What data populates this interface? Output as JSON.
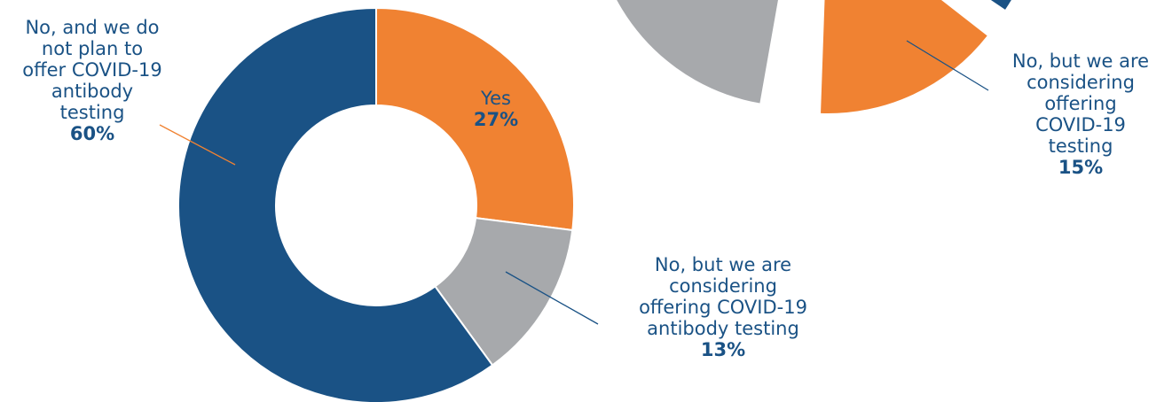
{
  "chart_data": [
    {
      "type": "pie",
      "categories": [
        "Yes",
        "No, but we are considering offering COVID-19 antibody testing",
        "No, and we do not plan to offer COVID-19 antibody testing"
      ],
      "values": [
        27,
        13,
        60
      ],
      "series": [
        {
          "values": [
            27,
            13,
            60
          ]
        }
      ],
      "colors": [
        "#f08232",
        "#a7a9ac",
        "#1a5285"
      ],
      "labels": [
        {
          "lines": [
            "Yes"
          ],
          "pct": "27%"
        },
        {
          "lines": [
            "No, but we are",
            "considering",
            "offering COVID-19",
            "antibody testing"
          ],
          "pct": "13%"
        },
        {
          "lines": [
            "No, and we do",
            "not plan to",
            "offer COVID-19",
            "antibody",
            "testing"
          ],
          "pct": "60%"
        }
      ],
      "title": "",
      "legend": "none"
    },
    {
      "type": "pie",
      "categories": [
        "No, but we are considering offering COVID-19 testing"
      ],
      "values": [
        15
      ],
      "colors": [
        "#f08232",
        "#a7a9ac",
        "#1a5285"
      ],
      "labels": [
        {
          "lines": [
            "No, but we are",
            "considering",
            "offering",
            "COVID-19",
            "testing"
          ],
          "pct": "15%"
        }
      ],
      "title": "",
      "legend": "none",
      "note": ""
    }
  ]
}
